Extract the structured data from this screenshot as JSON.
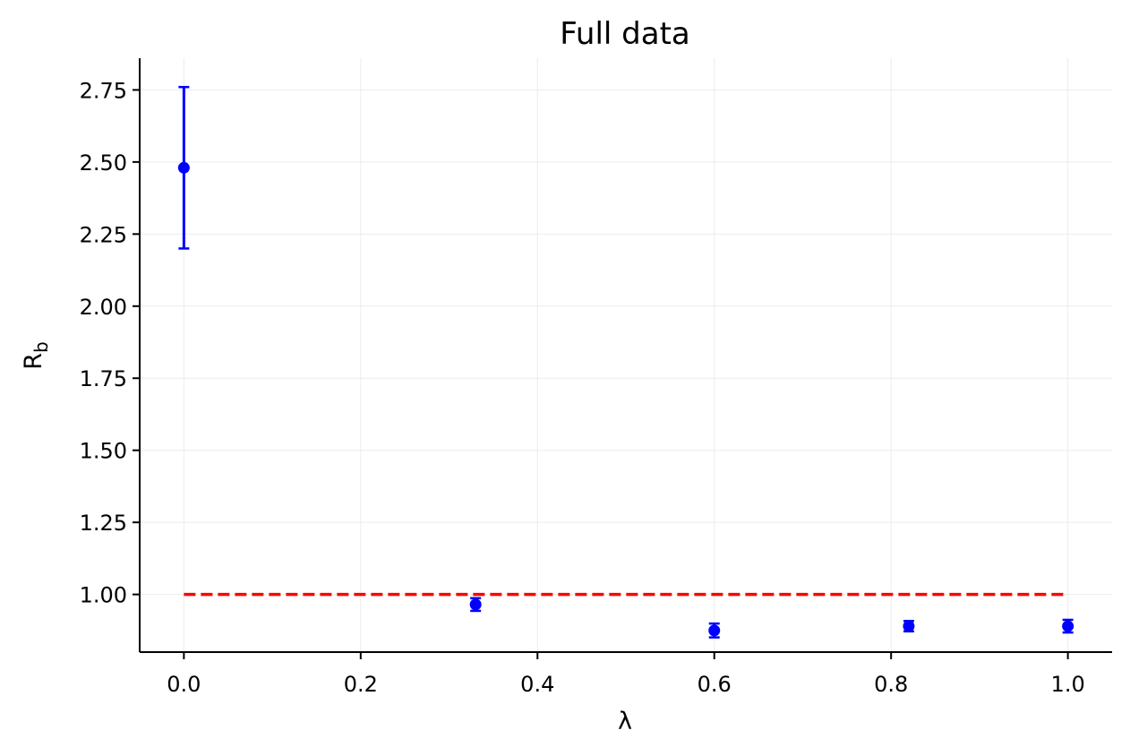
{
  "chart_data": {
    "type": "scatter",
    "title": "Full data",
    "xlabel": "λ",
    "ylabel": {
      "main": "R",
      "sub": "b"
    },
    "xlim": [
      -0.05,
      1.05
    ],
    "ylim": [
      0.8,
      2.86
    ],
    "xticks": [
      0.0,
      0.2,
      0.4,
      0.6,
      0.8,
      1.0
    ],
    "xtick_labels": [
      "0.0",
      "0.2",
      "0.4",
      "0.6",
      "0.8",
      "1.0"
    ],
    "yticks": [
      1.0,
      1.25,
      1.5,
      1.75,
      2.0,
      2.25,
      2.5,
      2.75
    ],
    "ytick_labels": [
      "1.00",
      "1.25",
      "1.50",
      "1.75",
      "2.00",
      "2.25",
      "2.50",
      "2.75"
    ],
    "grid": true,
    "legend": false,
    "series": [
      {
        "points": [
          {
            "x": 0.0,
            "y": 2.48,
            "err": 0.28
          },
          {
            "x": 0.33,
            "y": 0.965,
            "err": 0.022
          },
          {
            "x": 0.6,
            "y": 0.875,
            "err": 0.024
          },
          {
            "x": 0.82,
            "y": 0.89,
            "err": 0.018
          },
          {
            "x": 1.0,
            "y": 0.89,
            "err": 0.022
          }
        ],
        "color": "#0000ff"
      }
    ],
    "reference_line": {
      "y": 1.0,
      "x_start": 0.0,
      "x_end": 1.0,
      "style": "dashed",
      "color": "#ff0000"
    }
  }
}
